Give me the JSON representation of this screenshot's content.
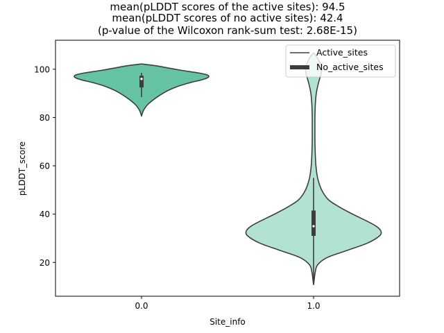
{
  "chart_data": {
    "type": "violin",
    "title_lines": [
      "mean(pLDDT scores of the active sites): 94.5",
      "mean(pLDDT scores of no active sites): 42.4",
      "(p-value of the Wilcoxon rank-sum test: 2.68E-15)"
    ],
    "xlabel": "Site_info",
    "ylabel": "pLDDT_score",
    "categories": [
      "0.0",
      "1.0"
    ],
    "ylim": [
      6,
      112
    ],
    "yticks": [
      "20",
      "40",
      "60",
      "80",
      "100"
    ],
    "legend": {
      "position": "top-right",
      "entries": [
        "Active_sites",
        "No_active_sites"
      ]
    },
    "series": [
      {
        "name": "Active_sites",
        "category": "0.0",
        "color": "#66c2a5",
        "mean": 94.5,
        "box": {
          "q1": 92.5,
          "median": 96,
          "q3": 97.3,
          "whisker_low": 88.5,
          "whisker_high": 98.5
        },
        "violin_profile": [
          [
            80.6,
            0.0
          ],
          [
            81.5,
            0.01
          ],
          [
            83,
            0.03
          ],
          [
            85,
            0.08
          ],
          [
            87,
            0.16
          ],
          [
            89,
            0.26
          ],
          [
            91,
            0.38
          ],
          [
            93,
            0.55
          ],
          [
            94.5,
            0.73
          ],
          [
            95.5,
            0.88
          ],
          [
            96.3,
            0.97
          ],
          [
            97,
            1.0
          ],
          [
            97.7,
            0.97
          ],
          [
            98.5,
            0.84
          ],
          [
            99.5,
            0.6
          ],
          [
            100.5,
            0.4
          ],
          [
            101.5,
            0.2
          ],
          [
            102.2,
            0.0
          ]
        ]
      },
      {
        "name": "No_active_sites",
        "category": "1.0",
        "color": "#b2e2d2",
        "mean": 42.4,
        "box": {
          "q1": 31,
          "median": 35,
          "q3": 41.5,
          "whisker_low": 11,
          "whisker_high": 55
        },
        "violin_profile": [
          [
            10.8,
            0.0
          ],
          [
            13,
            0.01
          ],
          [
            16,
            0.025
          ],
          [
            19,
            0.06
          ],
          [
            22,
            0.2
          ],
          [
            25,
            0.5
          ],
          [
            28,
            0.8
          ],
          [
            31,
            0.98
          ],
          [
            33,
            1.0
          ],
          [
            35,
            0.93
          ],
          [
            37,
            0.8
          ],
          [
            40,
            0.58
          ],
          [
            43,
            0.38
          ],
          [
            46,
            0.22
          ],
          [
            50,
            0.12
          ],
          [
            55,
            0.06
          ],
          [
            60,
            0.035
          ],
          [
            65,
            0.025
          ],
          [
            70,
            0.02
          ],
          [
            75,
            0.02
          ],
          [
            80,
            0.02
          ],
          [
            85,
            0.025
          ],
          [
            90,
            0.04
          ],
          [
            94,
            0.07
          ],
          [
            97,
            0.1
          ],
          [
            100,
            0.12
          ],
          [
            103,
            0.09
          ],
          [
            105,
            0.05
          ],
          [
            106.8,
            0.0
          ]
        ]
      }
    ]
  }
}
